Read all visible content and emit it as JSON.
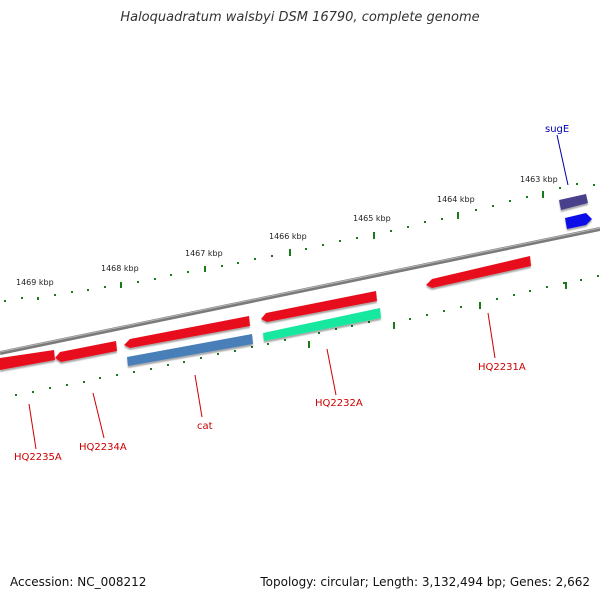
{
  "title": "Haloquadratum walsbyi DSM 16790, complete genome",
  "footer": {
    "accession": "Accession: NC_008212",
    "summary": "Topology: circular; Length: 3,132,494 bp; Genes: 2,662"
  },
  "scale_labels": [
    "1463 kbp",
    "1464 kbp",
    "1465 kbp",
    "1466 kbp",
    "1467 kbp",
    "1468 kbp",
    "1469 kbp"
  ],
  "genes": [
    {
      "label": "sugE",
      "strand": "forward",
      "color": "#4a3f8c"
    },
    {
      "label": "HQ2231A",
      "strand": "forward",
      "color": "#e8101a"
    },
    {
      "label": "HQ2232A",
      "strand": "forward",
      "color": "#e8101a"
    },
    {
      "label": "cat",
      "strand": "forward",
      "color": "#e8101a"
    },
    {
      "label": "HQ2234A",
      "strand": "reverse",
      "color": "#e8101a"
    },
    {
      "label": "HQ2235A",
      "strand": "reverse",
      "color": "#e8101a"
    }
  ],
  "features": [
    {
      "name": "sugE-cds",
      "color": "#1010e8"
    },
    {
      "name": "HQ2232A-rna",
      "color": "#18e8a0"
    },
    {
      "name": "cat-cds",
      "color": "#4a7fb8"
    }
  ],
  "colors": {
    "backbone": "#7a7a7a",
    "ticks": "#1a7a1a",
    "label_red": "#cc0000",
    "label_blue": "#0000aa"
  }
}
